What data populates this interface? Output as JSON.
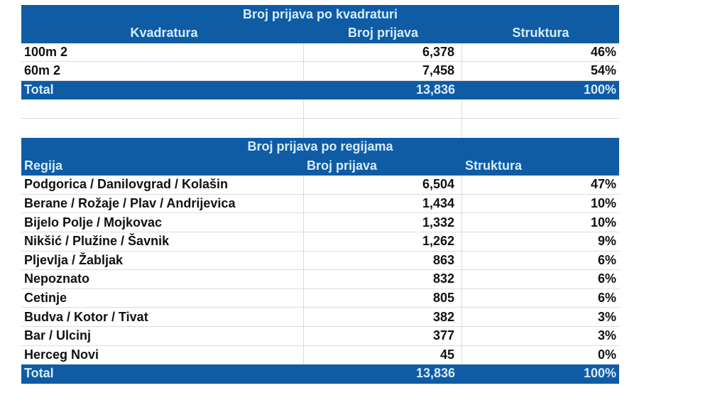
{
  "colors": {
    "header_bg": "#0f5ca5",
    "header_text": "#d6ecfb",
    "grid": "#dcdcdc"
  },
  "table1": {
    "title": "Broj prijava po kvadraturi",
    "headers": [
      "Kvadratura",
      "Broj prijava",
      "Struktura"
    ],
    "rows": [
      {
        "label": "100m 2",
        "count": "6,378",
        "share": "46%"
      },
      {
        "label": "60m 2",
        "count": "7,458",
        "share": "54%"
      }
    ],
    "total": {
      "label": "Total",
      "count": "13,836",
      "share": "100%"
    }
  },
  "table2": {
    "title": "Broj prijava po regijama",
    "headers": [
      "Regija",
      "Broj prijava",
      "Struktura"
    ],
    "rows": [
      {
        "label": "Podgorica / Danilovgrad / Kolašin",
        "count": "6,504",
        "share": "47%"
      },
      {
        "label": "Berane / Rožaje / Plav / Andrijevica",
        "count": "1,434",
        "share": "10%"
      },
      {
        "label": "Bijelo Polje / Mojkovac",
        "count": "1,332",
        "share": "10%"
      },
      {
        "label": "Nikšić / Plužine / Šavnik",
        "count": "1,262",
        "share": "9%"
      },
      {
        "label": "Pljevlja / Žabljak",
        "count": "863",
        "share": "6%"
      },
      {
        "label": "Nepoznato",
        "count": "832",
        "share": "6%"
      },
      {
        "label": "Cetinje",
        "count": "805",
        "share": "6%"
      },
      {
        "label": "Budva / Kotor / Tivat",
        "count": "382",
        "share": "3%"
      },
      {
        "label": "Bar / Ulcinj",
        "count": "377",
        "share": "3%"
      },
      {
        "label": "Herceg Novi",
        "count": "45",
        "share": "0%"
      }
    ],
    "total": {
      "label": "Total",
      "count": "13,836",
      "share": "100%"
    }
  }
}
